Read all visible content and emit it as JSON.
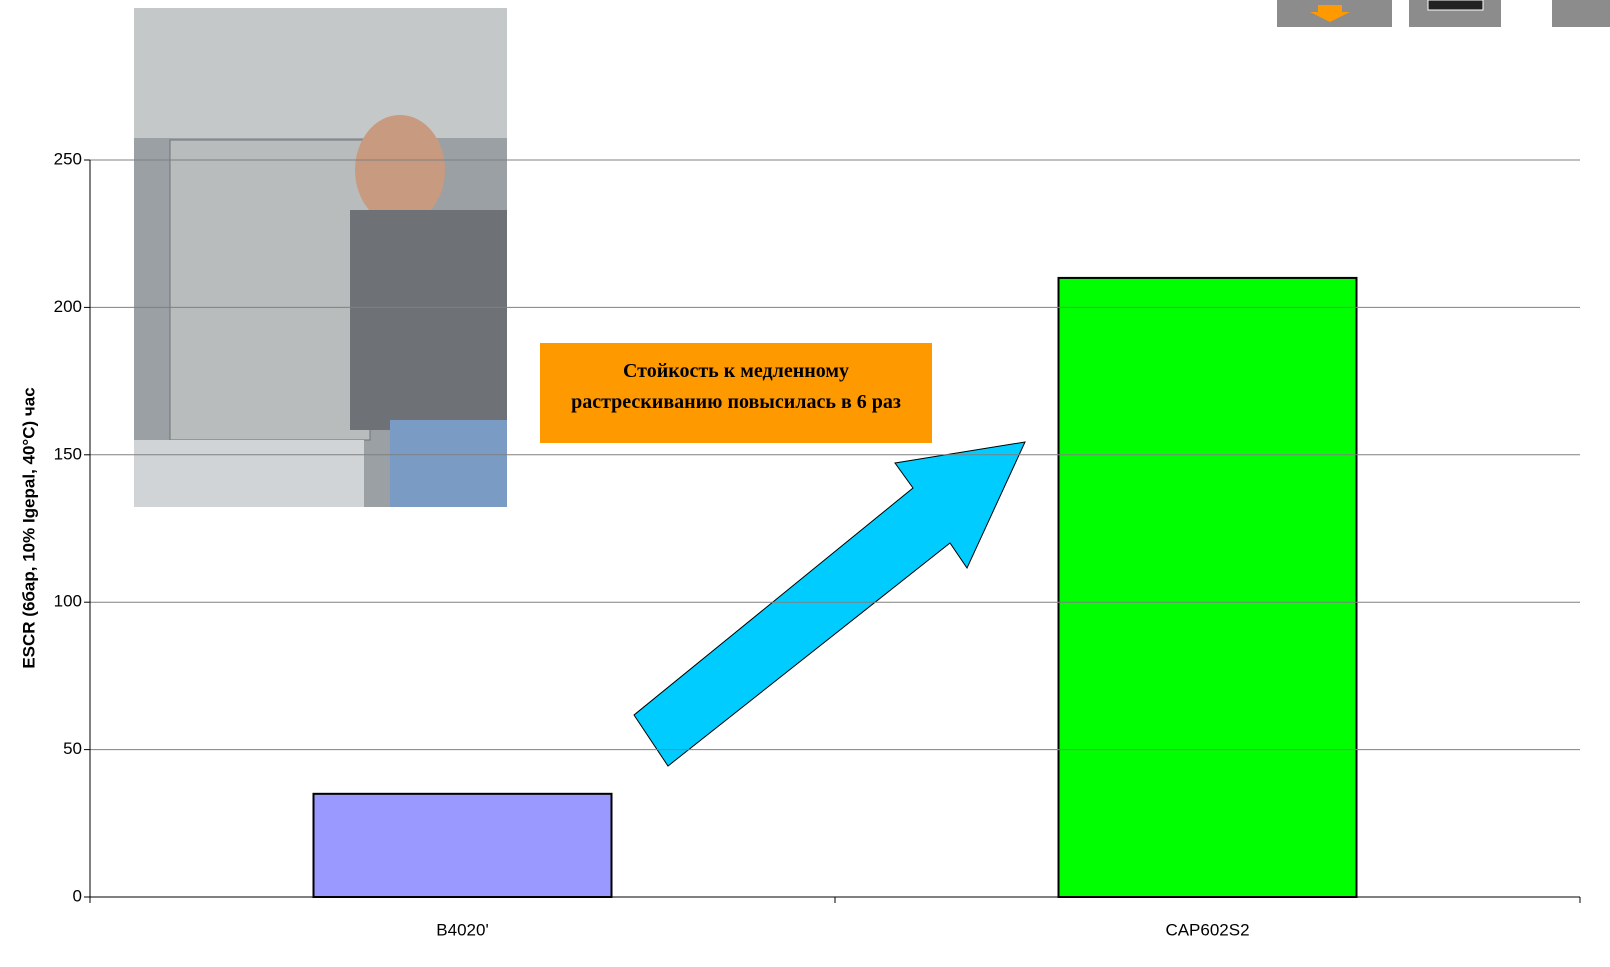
{
  "chart_data": {
    "type": "bar",
    "y_label": "ESCR (6бар, 10% Igepal, 40°C) час",
    "annotation": "Стойкость к медленному растрескиванию повысилась в 6 раз",
    "categories": [
      "B4020'",
      "CAP602S2"
    ],
    "values": [
      35,
      210
    ],
    "colors": [
      "#9999ff",
      "#00ff00"
    ],
    "ylim": [
      0,
      250
    ],
    "yticks": [
      0,
      50,
      100,
      150,
      200,
      250
    ],
    "grid": true
  }
}
